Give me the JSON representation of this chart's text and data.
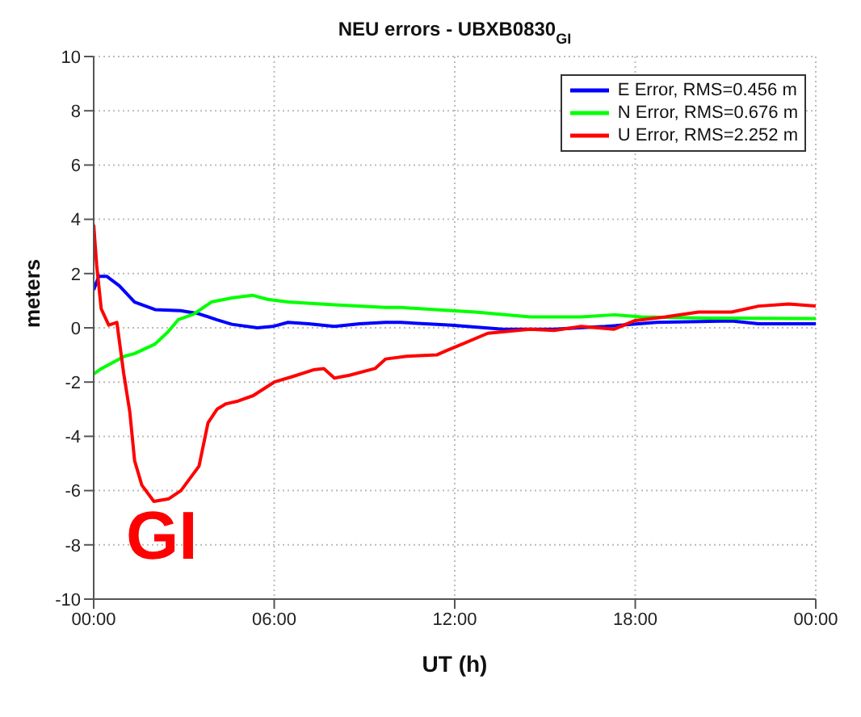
{
  "chart_data": {
    "type": "line",
    "title": "NEU errors - UBXB0830$_{GI}$",
    "xlabel": "UT (h)",
    "ylabel": "meters",
    "xlim": [
      0,
      24
    ],
    "xticks": [
      {
        "value": 0,
        "label": "00:00"
      },
      {
        "value": 6,
        "label": "06:00"
      },
      {
        "value": 12,
        "label": "12:00"
      },
      {
        "value": 18,
        "label": "18:00"
      },
      {
        "value": 24,
        "label": "00:00"
      }
    ],
    "ylim": [
      -10,
      10
    ],
    "yticks": [
      -10,
      -8,
      -6,
      -4,
      -2,
      0,
      2,
      4,
      6,
      8,
      10
    ],
    "grid": true,
    "legend": "top right",
    "line_style": "solid",
    "marker": "none",
    "annotations": [
      "GI"
    ],
    "series": [
      {
        "name": "E Error, RMS=0.456 m",
        "color": "#0000ff",
        "x": [
          0,
          0.17,
          0.43,
          0.85,
          1.36,
          2.04,
          2.89,
          3.49,
          4.08,
          4.59,
          5.44,
          5.95,
          6.46,
          7.14,
          8.0,
          8.84,
          9.69,
          10.2,
          11.9,
          13.6,
          15.3,
          17.0,
          18.7,
          21.2,
          22.1,
          24
        ],
        "values": [
          1.4,
          1.9,
          1.9,
          1.55,
          0.95,
          0.67,
          0.63,
          0.52,
          0.3,
          0.13,
          0.0,
          0.05,
          0.2,
          0.15,
          0.05,
          0.15,
          0.2,
          0.2,
          0.1,
          -0.05,
          -0.05,
          0.05,
          0.2,
          0.25,
          0.15,
          0.15
        ]
      },
      {
        "name": "N Error, RMS=0.676 m",
        "color": "#00ff00",
        "x": [
          0,
          0.26,
          1.02,
          1.36,
          2.04,
          2.47,
          2.81,
          3.32,
          3.91,
          4.59,
          5.27,
          5.78,
          6.46,
          8.0,
          9.69,
          10.2,
          11.9,
          12.7,
          14.5,
          16.2,
          17.3,
          18.2,
          20.4,
          24
        ],
        "values": [
          -1.7,
          -1.5,
          -1.05,
          -0.95,
          -0.6,
          -0.15,
          0.3,
          0.5,
          0.95,
          1.1,
          1.2,
          1.05,
          0.95,
          0.85,
          0.75,
          0.75,
          0.63,
          0.58,
          0.4,
          0.4,
          0.48,
          0.4,
          0.36,
          0.34
        ]
      },
      {
        "name": "U Error, RMS=2.252 m",
        "color": "#ff0000",
        "x": [
          0,
          0.1,
          0.25,
          0.5,
          0.77,
          1.0,
          1.2,
          1.36,
          1.6,
          2.0,
          2.5,
          2.9,
          3.5,
          3.8,
          4.1,
          4.4,
          4.8,
          5.3,
          6.0,
          6.6,
          7.3,
          7.65,
          8.0,
          8.5,
          9.35,
          9.7,
          10.4,
          11.4,
          11.7,
          12.25,
          13.1,
          14.5,
          15.3,
          16.2,
          17.3,
          18.0,
          19.0,
          20.1,
          21.2,
          22.1,
          23.1,
          24
        ],
        "values": [
          3.8,
          2.3,
          0.7,
          0.1,
          0.2,
          -1.7,
          -3.1,
          -4.9,
          -5.8,
          -6.4,
          -6.3,
          -6.0,
          -5.1,
          -3.5,
          -3.0,
          -2.8,
          -2.7,
          -2.5,
          -2.0,
          -1.8,
          -1.55,
          -1.5,
          -1.85,
          -1.75,
          -1.5,
          -1.15,
          -1.05,
          -1.0,
          -0.85,
          -0.6,
          -0.2,
          -0.05,
          -0.1,
          0.05,
          -0.05,
          0.27,
          0.4,
          0.58,
          0.58,
          0.8,
          0.88,
          0.8
        ]
      }
    ]
  }
}
